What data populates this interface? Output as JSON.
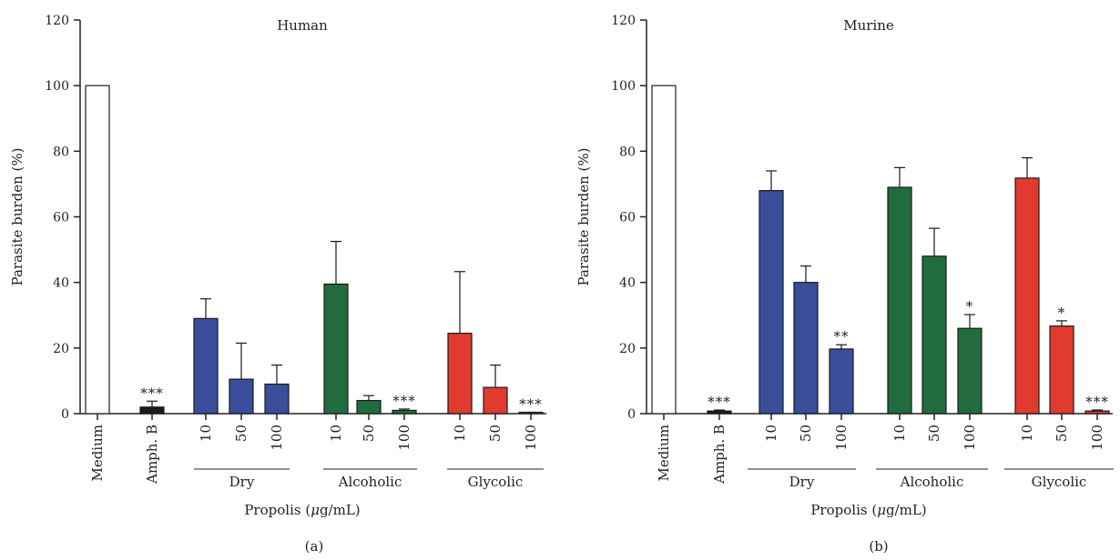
{
  "chart_data": [
    {
      "type": "bar",
      "title": "Human",
      "panel_label": "(a)",
      "ylabel": "Parasite burden (%)",
      "xlabel_prefix": "Propolis (",
      "xlabel_mu": "μ",
      "xlabel_suffix": "g/mL)",
      "ylim": [
        0,
        120
      ],
      "yticks": [
        0,
        20,
        40,
        60,
        80,
        100,
        120
      ],
      "categories": [
        "Medium",
        "Amph. B",
        "10",
        "50",
        "100",
        "10",
        "50",
        "100",
        "10",
        "50",
        "100"
      ],
      "groups": [
        {
          "label": "Dry",
          "members": [
            2,
            3,
            4
          ]
        },
        {
          "label": "Alcoholic",
          "members": [
            5,
            6,
            7
          ]
        },
        {
          "label": "Glycolic",
          "members": [
            8,
            9,
            10
          ]
        }
      ],
      "values": [
        100,
        2,
        29,
        10.5,
        9,
        39.5,
        4,
        1,
        24.5,
        8,
        0.3
      ],
      "errors": [
        0,
        1.8,
        6,
        11,
        5.8,
        13,
        1.5,
        0.4,
        18.8,
        6.8,
        0.1
      ],
      "significance": [
        "",
        "***",
        "",
        "",
        "",
        "",
        "",
        "***",
        "",
        "",
        "***"
      ],
      "colors": [
        "#ffffff",
        "#1a1a1a",
        "#3a4e9c",
        "#3a4e9c",
        "#3a4e9c",
        "#226b3f",
        "#226b3f",
        "#226b3f",
        "#e13b30",
        "#e13b30",
        "#e13b30"
      ],
      "grid": false
    },
    {
      "type": "bar",
      "title": "Murine",
      "panel_label": "(b)",
      "ylabel": "Parasite burden (%)",
      "xlabel_prefix": "Propolis (",
      "xlabel_mu": "μ",
      "xlabel_suffix": "g/mL)",
      "ylim": [
        0,
        120
      ],
      "yticks": [
        0,
        20,
        40,
        60,
        80,
        100,
        120
      ],
      "categories": [
        "Medium",
        "Amph. B",
        "10",
        "50",
        "100",
        "10",
        "50",
        "100",
        "10",
        "50",
        "100"
      ],
      "groups": [
        {
          "label": "Dry",
          "members": [
            2,
            3,
            4
          ]
        },
        {
          "label": "Alcoholic",
          "members": [
            5,
            6,
            7
          ]
        },
        {
          "label": "Glycolic",
          "members": [
            8,
            9,
            10
          ]
        }
      ],
      "values": [
        100,
        0.8,
        68,
        40,
        19.7,
        69,
        48,
        26,
        71.8,
        26.7,
        0.8
      ],
      "errors": [
        0,
        0.3,
        6,
        5,
        1.3,
        6,
        8.5,
        4.2,
        6.2,
        1.6,
        0.3
      ],
      "significance": [
        "",
        "***",
        "",
        "",
        "**",
        "",
        "",
        "*",
        "",
        "*",
        "***"
      ],
      "colors": [
        "#ffffff",
        "#1a1a1a",
        "#3a4e9c",
        "#3a4e9c",
        "#3a4e9c",
        "#226b3f",
        "#226b3f",
        "#226b3f",
        "#e13b30",
        "#e13b30",
        "#e13b30"
      ],
      "grid": false
    }
  ]
}
